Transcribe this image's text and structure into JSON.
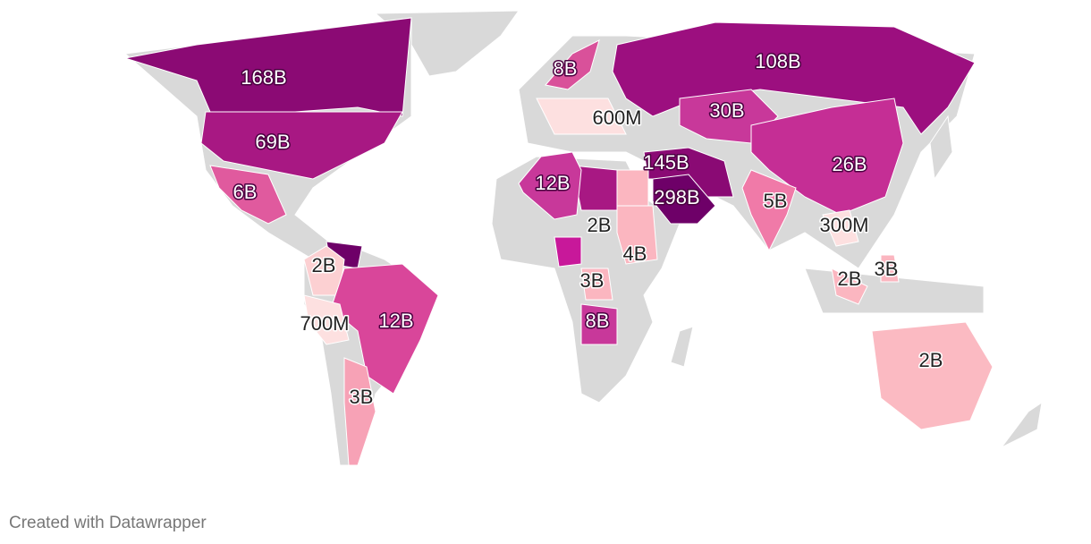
{
  "markers": [
    {
      "label": "168B",
      "color": "#8b0a74"
    },
    {
      "label": "108B",
      "color": "#9c0f7f"
    },
    {
      "label": "8B",
      "color": "#d9519a"
    },
    {
      "label": "600M",
      "color": "#fde0e0"
    },
    {
      "label": "30B",
      "color": "#c8389a"
    },
    {
      "label": "69B",
      "color": "#a81883"
    },
    {
      "label": "145B",
      "color": "#8a0a74"
    },
    {
      "label": "26B",
      "color": "#c52e95"
    },
    {
      "label": "12B",
      "color": "#c8389a"
    },
    {
      "label": "298B",
      "color": "#6e0068"
    },
    {
      "label": "6B",
      "color": "#e05a9e"
    },
    {
      "label": "5B",
      "color": "#f07aa8"
    },
    {
      "label": "2B",
      "color": "#fbb6c0"
    },
    {
      "label": "300M",
      "color": "#fde0e0"
    },
    {
      "label": "4B",
      "color": "#fbb6c0"
    },
    {
      "label": "2B",
      "color": "#fcd0d2"
    },
    {
      "label": "3B",
      "color": "#fbb6c0"
    },
    {
      "label": "2B",
      "color": "#fbb6c0"
    },
    {
      "label": "3B",
      "color": "#fbb6c0"
    },
    {
      "label": "12B",
      "color": "#d9469a"
    },
    {
      "label": "700M",
      "color": "#fde0e0"
    },
    {
      "label": "8B",
      "color": "#c8389a"
    },
    {
      "label": "3B",
      "color": "#f7a2b6"
    },
    {
      "label": "2B",
      "color": "#fbbac2"
    }
  ],
  "footer": "Created with Datawrapper"
}
